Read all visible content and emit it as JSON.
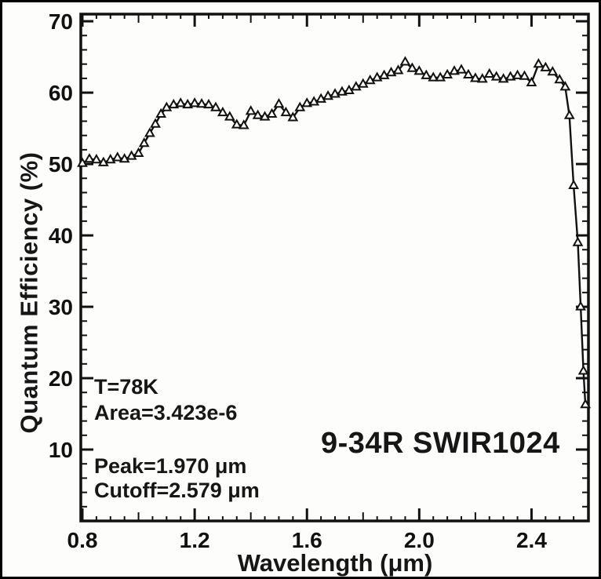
{
  "chart_data": {
    "type": "line",
    "title": "9-34R SWIR1024",
    "xlabel": "Wavelength (μm)",
    "ylabel": "Quantum Efficiency (%)",
    "xlim": [
      0.8,
      2.6
    ],
    "ylim": [
      0,
      71
    ],
    "grid": false,
    "legend": null,
    "marker": "open-triangle-up",
    "line_color": "#111111",
    "frame_color": "#111111",
    "background": "#fdfdfc",
    "xticks": {
      "labels": [
        "0.8",
        "1.2",
        "1.6",
        "2.0",
        "2.4"
      ],
      "values": [
        0.8,
        1.2,
        1.6,
        2.0,
        2.4
      ],
      "medium_step": 0.2,
      "minor_step": 0.05
    },
    "yticks": {
      "labels": [
        "10",
        "20",
        "30",
        "40",
        "50",
        "60",
        "70"
      ],
      "values": [
        10,
        20,
        30,
        40,
        50,
        60,
        70
      ],
      "minor_step": 2
    },
    "annotations": {
      "temperature": "T=78K",
      "area": "Area=3.423e-6",
      "peak": "Peak=1.970 μm",
      "cutoff": "Cutoff=2.579 μm"
    },
    "series": [
      {
        "name": "quantum-efficiency",
        "x": [
          0.8,
          0.825,
          0.85,
          0.875,
          0.9,
          0.925,
          0.95,
          0.975,
          1.0,
          1.02,
          1.04,
          1.06,
          1.08,
          1.1,
          1.125,
          1.15,
          1.175,
          1.2,
          1.225,
          1.25,
          1.275,
          1.3,
          1.325,
          1.35,
          1.375,
          1.4,
          1.425,
          1.45,
          1.475,
          1.5,
          1.525,
          1.55,
          1.575,
          1.6,
          1.625,
          1.65,
          1.675,
          1.7,
          1.725,
          1.75,
          1.775,
          1.8,
          1.825,
          1.85,
          1.875,
          1.9,
          1.925,
          1.95,
          1.975,
          2.0,
          2.025,
          2.05,
          2.075,
          2.1,
          2.125,
          2.15,
          2.175,
          2.2,
          2.225,
          2.25,
          2.275,
          2.3,
          2.325,
          2.35,
          2.375,
          2.4,
          2.425,
          2.45,
          2.475,
          2.5,
          2.52,
          2.535,
          2.55,
          2.565,
          2.575,
          2.585,
          2.592
        ],
        "y": [
          50.1,
          50.7,
          50.6,
          50.2,
          50.6,
          50.9,
          50.7,
          51.1,
          51.5,
          52.9,
          54.3,
          55.6,
          57.0,
          57.9,
          58.3,
          58.5,
          58.3,
          58.5,
          58.4,
          58.3,
          57.9,
          57.2,
          56.6,
          55.5,
          55.4,
          57.4,
          56.8,
          56.6,
          57.0,
          58.4,
          57.2,
          56.5,
          57.9,
          58.5,
          58.7,
          59.1,
          59.5,
          59.8,
          60.1,
          60.3,
          60.8,
          61.2,
          61.7,
          62.1,
          62.4,
          62.8,
          63.1,
          64.3,
          63.4,
          63.0,
          62.4,
          62.1,
          62.1,
          62.5,
          63.0,
          63.2,
          62.5,
          62.0,
          61.9,
          62.6,
          62.2,
          61.9,
          62.2,
          62.4,
          62.3,
          61.4,
          64.0,
          63.5,
          62.9,
          61.8,
          60.8,
          56.8,
          47.0,
          39.0,
          30.0,
          21.0,
          16.3
        ]
      }
    ]
  }
}
